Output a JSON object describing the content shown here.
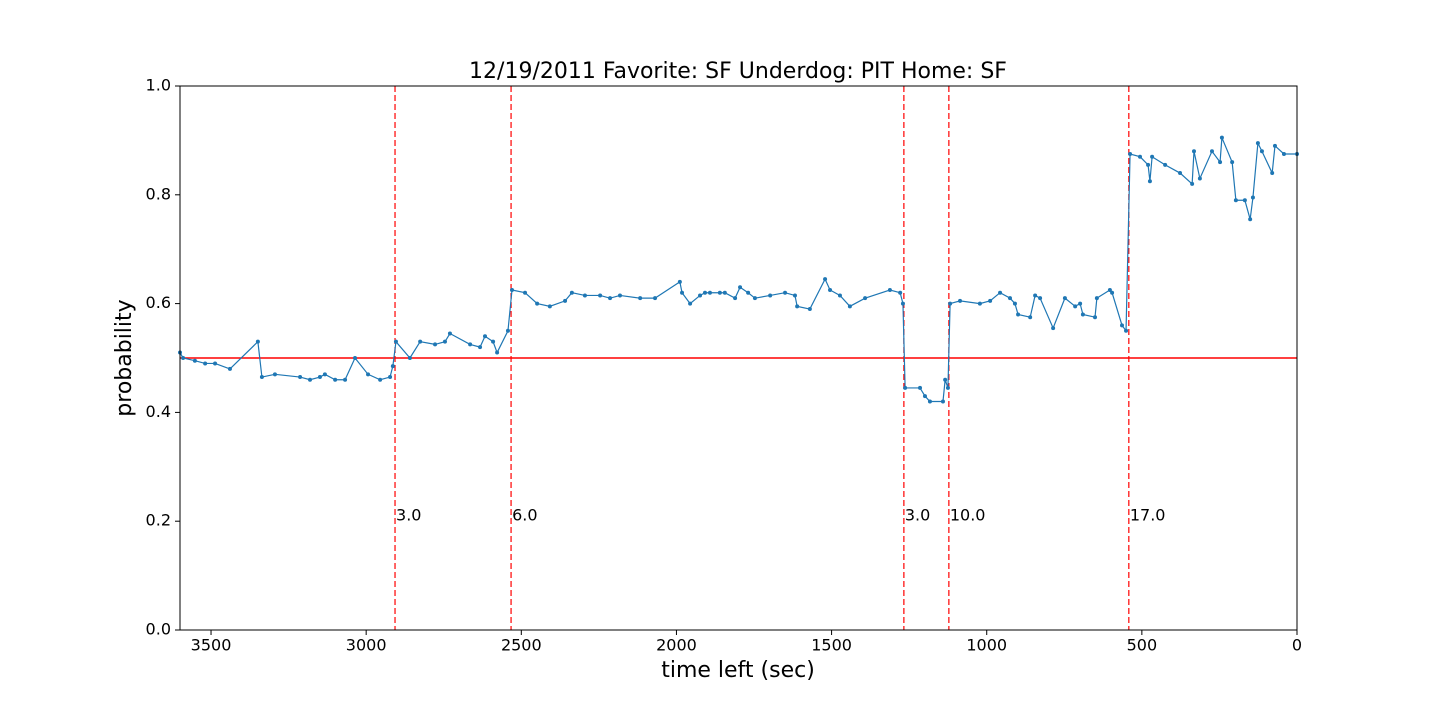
{
  "chart_data": {
    "type": "line",
    "title": "12/19/2011 Favorite: SF Underdog: PIT Home: SF",
    "x_label": "time left (sec)",
    "y_label": "probability",
    "xlim": [
      3600,
      0
    ],
    "ylim": [
      0,
      1
    ],
    "xticks": [
      3500,
      3000,
      2500,
      2000,
      1500,
      1000,
      500,
      0
    ],
    "yticks": [
      {
        "value": 0,
        "label": "0.0"
      },
      0.2,
      0.4,
      0.6,
      0.8,
      {
        "value": 1,
        "label": "1.0"
      }
    ],
    "color": "#1f77b4",
    "reference_color": "#ff0000",
    "hline": 0.5,
    "vlines": [
      {
        "x": 2907,
        "label": "3.0"
      },
      {
        "x": 2533,
        "label": "6.0"
      },
      {
        "x": 1267,
        "label": "3.0"
      },
      {
        "x": 1122,
        "label": "10.0"
      },
      {
        "x": 542,
        "label": "17.0"
      }
    ],
    "x": [
      3600,
      3590,
      3552,
      3519,
      3487,
      3439,
      3349,
      3336,
      3294,
      3213,
      3181,
      3149,
      3133,
      3100,
      3068,
      3036,
      2994,
      2955,
      2923,
      2914,
      2904,
      2859,
      2826,
      2778,
      2746,
      2730,
      2665,
      2633,
      2617,
      2591,
      2578,
      2543,
      2530,
      2488,
      2449,
      2408,
      2359,
      2337,
      2295,
      2246,
      2214,
      2182,
      2117,
      2069,
      1989,
      1982,
      1956,
      1924,
      1908,
      1892,
      1860,
      1844,
      1811,
      1795,
      1769,
      1747,
      1698,
      1650,
      1618,
      1611,
      1570,
      1521,
      1505,
      1473,
      1441,
      1392,
      1312,
      1279,
      1270,
      1263,
      1215,
      1199,
      1183,
      1141,
      1134,
      1125,
      1118,
      1086,
      1022,
      989,
      957,
      925,
      909,
      899,
      860,
      844,
      828,
      786,
      748,
      715,
      699,
      690,
      651,
      645,
      603,
      596,
      564,
      551,
      538,
      506,
      480,
      474,
      467,
      425,
      377,
      338,
      332,
      313,
      274,
      248,
      242,
      209,
      197,
      168,
      151,
      142,
      126,
      113,
      80,
      71,
      42,
      0
    ],
    "values": [
      0.51,
      0.5,
      0.495,
      0.49,
      0.49,
      0.48,
      0.53,
      0.465,
      0.47,
      0.465,
      0.46,
      0.465,
      0.47,
      0.46,
      0.46,
      0.5,
      0.47,
      0.46,
      0.465,
      0.485,
      0.53,
      0.5,
      0.53,
      0.525,
      0.53,
      0.545,
      0.525,
      0.52,
      0.54,
      0.53,
      0.51,
      0.55,
      0.625,
      0.62,
      0.6,
      0.595,
      0.605,
      0.62,
      0.615,
      0.615,
      0.61,
      0.615,
      0.61,
      0.61,
      0.64,
      0.62,
      0.6,
      0.615,
      0.62,
      0.62,
      0.62,
      0.62,
      0.61,
      0.63,
      0.62,
      0.61,
      0.615,
      0.62,
      0.615,
      0.595,
      0.59,
      0.645,
      0.625,
      0.615,
      0.595,
      0.61,
      0.625,
      0.62,
      0.6,
      0.445,
      0.445,
      0.43,
      0.42,
      0.42,
      0.46,
      0.445,
      0.6,
      0.605,
      0.6,
      0.605,
      0.62,
      0.61,
      0.6,
      0.58,
      0.575,
      0.615,
      0.61,
      0.555,
      0.61,
      0.595,
      0.6,
      0.58,
      0.575,
      0.61,
      0.625,
      0.62,
      0.56,
      0.55,
      0.875,
      0.87,
      0.855,
      0.825,
      0.87,
      0.855,
      0.84,
      0.82,
      0.88,
      0.83,
      0.88,
      0.86,
      0.905,
      0.86,
      0.79,
      0.79,
      0.755,
      0.795,
      0.895,
      0.88,
      0.84,
      0.89,
      0.875,
      0.875
    ]
  }
}
